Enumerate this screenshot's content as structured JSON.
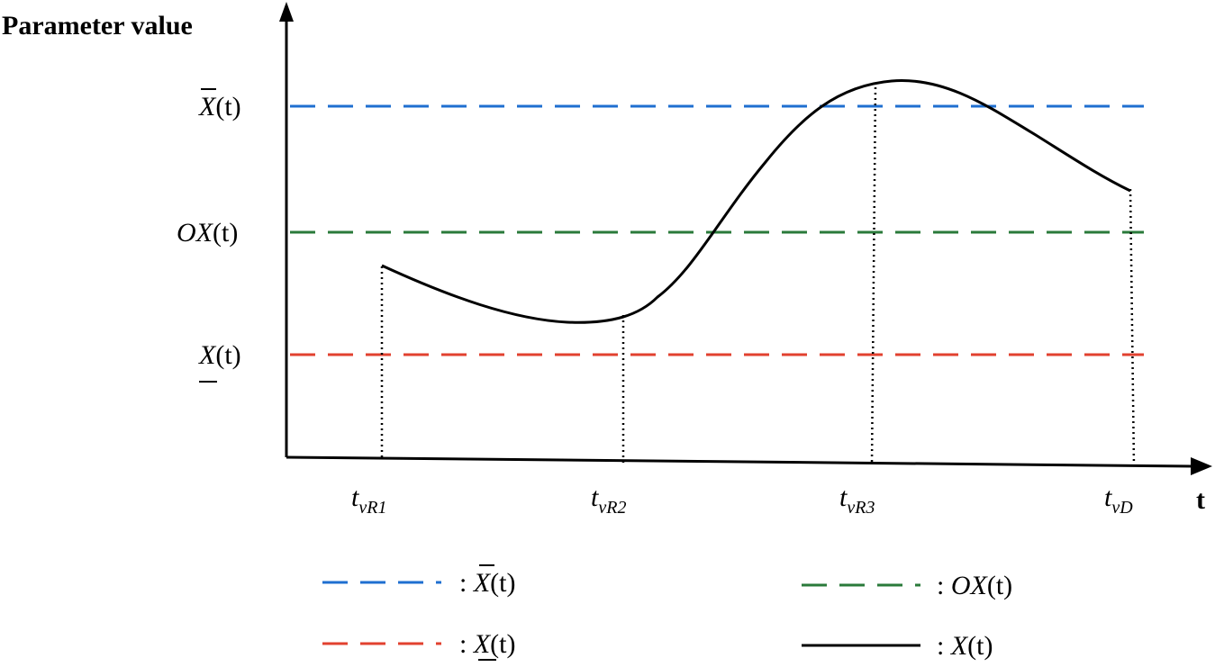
{
  "axes": {
    "y_title": "Parameter value",
    "x_title": "t"
  },
  "levels": [
    {
      "id": "upper",
      "base": "X",
      "mark": "overline",
      "arg": "(t)",
      "color": "#1f6fd0"
    },
    {
      "id": "optimal",
      "base": "OX",
      "mark": "none",
      "arg": "(t)",
      "color": "#2a7a3a"
    },
    {
      "id": "lower",
      "base": "X",
      "mark": "underline",
      "arg": "(t)",
      "color": "#e2412f"
    }
  ],
  "time_marks": [
    {
      "base": "t",
      "sub": "νR1"
    },
    {
      "base": "t",
      "sub": "νR2"
    },
    {
      "base": "t",
      "sub": "νR3"
    },
    {
      "base": "t",
      "sub": "νD"
    }
  ],
  "legend": [
    {
      "sep": ": ",
      "base": "X",
      "mark": "overline",
      "arg": "(t)",
      "color": "#1f6fd0",
      "style": "dashed"
    },
    {
      "sep": ": ",
      "base": "OX",
      "mark": "none",
      "arg": "(t)",
      "color": "#2a7a3a",
      "style": "dashed"
    },
    {
      "sep": ": ",
      "base": "X",
      "mark": "underline",
      "arg": "(t)",
      "color": "#e2412f",
      "style": "dashed"
    },
    {
      "sep": ": ",
      "base": "X",
      "mark": "none",
      "arg": "(t)",
      "color": "#000000",
      "style": "solid"
    }
  ]
}
